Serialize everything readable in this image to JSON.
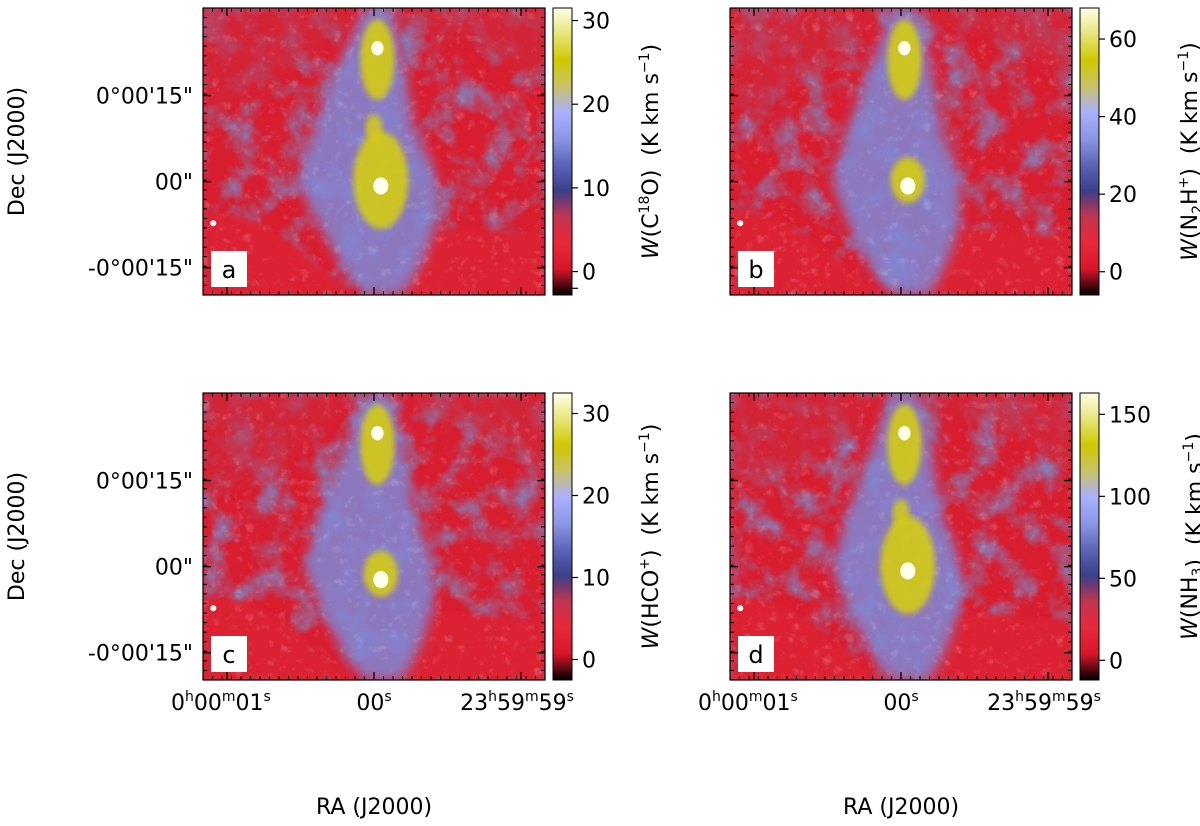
{
  "figure": {
    "ylabel": "Dec (J2000)",
    "xlabel": "RA (J2000)",
    "dec_ticks": [
      "0°00'15\"",
      "00\"",
      "-0°00'15\""
    ],
    "ra_ticks": [
      {
        "h": "0",
        "m": "00",
        "s": "01"
      },
      {
        "s": "00"
      },
      {
        "h": "23",
        "m": "59",
        "s": "59"
      }
    ],
    "units_label": "(K km s",
    "units_exp": "−1",
    "units_close": ")",
    "w_prefix": "W"
  },
  "chart_data": [
    {
      "type": "heatmap",
      "panel": "a",
      "quantity": {
        "pre": "(C",
        "sup": "18",
        "post": "O)"
      },
      "colorbar": {
        "ticks": [
          -2,
          0,
          10,
          20,
          30
        ],
        "tick_labels": [
          "",
          "0",
          "10",
          "20",
          "30"
        ],
        "range": [
          -2.8,
          31.5
        ]
      },
      "peaks": [
        {
          "dec_offset": 20,
          "ra_offset_s": -0.05,
          "value": 31
        },
        {
          "dec_offset": 0,
          "ra_offset_s": -0.1,
          "value": 30
        }
      ]
    },
    {
      "type": "heatmap",
      "panel": "b",
      "quantity": {
        "pre": "(N",
        "sub": "2",
        "post2": "H",
        "sup": "+",
        "post": ")"
      },
      "colorbar": {
        "ticks": [
          0,
          20,
          40,
          60
        ],
        "tick_labels": [
          "0",
          "20",
          "40",
          "60"
        ],
        "range": [
          -6,
          68
        ]
      },
      "peaks": [
        {
          "dec_offset": 20,
          "ra_offset_s": -0.1,
          "value": 65
        },
        {
          "dec_offset": 0,
          "ra_offset_s": -0.15,
          "value": 55
        }
      ]
    },
    {
      "type": "heatmap",
      "panel": "c",
      "quantity": {
        "pre": "(HCO",
        "sup": "+",
        "post": ")"
      },
      "colorbar": {
        "ticks": [
          0,
          10,
          20,
          30
        ],
        "tick_labels": [
          "0",
          "10",
          "20",
          "30"
        ],
        "range": [
          -2.5,
          32.5
        ]
      },
      "peaks": [
        {
          "dec_offset": 20,
          "ra_offset_s": -0.05,
          "value": 31
        },
        {
          "dec_offset": 2,
          "ra_offset_s": -0.1,
          "value": 25
        }
      ]
    },
    {
      "type": "heatmap",
      "panel": "d",
      "quantity": {
        "pre": "(NH",
        "sub": "3",
        "post": ")"
      },
      "colorbar": {
        "ticks": [
          0,
          50,
          100,
          150
        ],
        "tick_labels": [
          "0",
          "50",
          "100",
          "150"
        ],
        "range": [
          -12,
          163
        ]
      },
      "peaks": [
        {
          "dec_offset": 20,
          "ra_offset_s": -0.05,
          "value": 155
        },
        {
          "dec_offset": 0,
          "ra_offset_s": -0.1,
          "value": 150
        }
      ]
    }
  ],
  "colormap": {
    "stops": [
      "#000000",
      "#d9152a",
      "#e8283b",
      "#c23550",
      "#3a3f8a",
      "#5d65b8",
      "#8d95e6",
      "#aab0ff",
      "#c8c26a",
      "#d0c800",
      "#e6e57a",
      "#ffffe8"
    ]
  }
}
